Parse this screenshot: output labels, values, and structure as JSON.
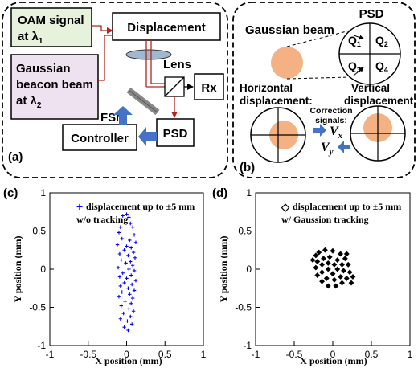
{
  "panel_a": {
    "label": "(a)",
    "oam_box": [
      "OAM signal",
      "at λ",
      "1"
    ],
    "gauss_box": [
      "Gaussian",
      "beacon beam",
      "at λ",
      "2"
    ],
    "displacement": "Displacement",
    "lens": "Lens",
    "fsm": "FSM",
    "rx": "Rx",
    "psd": "PSD",
    "controller": "Controller",
    "colors": {
      "oam_fill": "#e6f2dc",
      "gauss_fill": "#efe2f0",
      "beam": "#b3261e",
      "feedback_arrow": "#4472c4",
      "lens": "#9fb8cf"
    }
  },
  "panel_b": {
    "label": "(b)",
    "gaussian_beam": "Gaussian beam",
    "psd": "PSD",
    "quadrants": [
      [
        "Q",
        "1"
      ],
      [
        "Q",
        "2"
      ],
      [
        "Q",
        "3"
      ],
      [
        "Q",
        "4"
      ]
    ],
    "horizontal": [
      "Horizontal",
      "displacement:"
    ],
    "vertical": [
      "Vertical",
      "displacement:"
    ],
    "correction": [
      "Correction",
      "signals:"
    ],
    "vx": [
      "V",
      "x"
    ],
    "vy": [
      "V",
      "y"
    ],
    "colors": {
      "spot": "#f4b183",
      "arrow": "#4472c4"
    }
  },
  "chart_data": [
    {
      "panel": "(c)",
      "type": "scatter",
      "legend": [
        "+",
        "displacement up to ±5 mm",
        "w/o tracking"
      ],
      "xlabel": "X position (mm)",
      "ylabel": "Y position (mm)",
      "xlim": [
        -1,
        1
      ],
      "ylim": [
        -1,
        1
      ],
      "xticks": [
        "-1",
        "-0.5",
        "0",
        "0.5",
        "1"
      ],
      "yticks": [
        "1",
        "0.5",
        "0",
        "-0.5",
        "-1"
      ],
      "marker": "+",
      "color": "#0000ff",
      "series": [
        {
          "values": [
            [
              -0.05,
              0.7
            ],
            [
              0.0,
              0.72
            ],
            [
              0.03,
              0.68
            ],
            [
              0.05,
              0.6
            ],
            [
              -0.08,
              0.55
            ],
            [
              0.08,
              0.55
            ],
            [
              -0.1,
              0.48
            ],
            [
              0.1,
              0.45
            ],
            [
              -0.06,
              0.4
            ],
            [
              0.04,
              0.38
            ],
            [
              0.12,
              0.35
            ],
            [
              -0.12,
              0.32
            ],
            [
              0.0,
              0.3
            ],
            [
              0.06,
              0.28
            ],
            [
              -0.03,
              0.25
            ],
            [
              0.09,
              0.22
            ],
            [
              -0.09,
              0.2
            ],
            [
              0.02,
              0.18
            ],
            [
              0.11,
              0.15
            ],
            [
              -0.07,
              0.12
            ],
            [
              0.05,
              0.1
            ],
            [
              -0.01,
              0.08
            ],
            [
              0.08,
              0.05
            ],
            [
              -0.11,
              0.02
            ],
            [
              0.03,
              0.0
            ],
            [
              0.1,
              -0.02
            ],
            [
              -0.05,
              -0.05
            ],
            [
              0.06,
              -0.08
            ],
            [
              -0.09,
              -0.1
            ],
            [
              0.0,
              -0.12
            ],
            [
              0.12,
              -0.15
            ],
            [
              -0.03,
              -0.18
            ],
            [
              0.07,
              -0.2
            ],
            [
              -0.08,
              -0.22
            ],
            [
              0.02,
              -0.25
            ],
            [
              0.1,
              -0.28
            ],
            [
              -0.06,
              -0.3
            ],
            [
              0.04,
              -0.33
            ],
            [
              -0.1,
              -0.36
            ],
            [
              0.08,
              -0.38
            ],
            [
              -0.02,
              -0.42
            ],
            [
              0.06,
              -0.45
            ],
            [
              -0.07,
              -0.48
            ],
            [
              0.03,
              -0.52
            ],
            [
              0.09,
              -0.55
            ],
            [
              -0.04,
              -0.58
            ],
            [
              0.05,
              -0.62
            ],
            [
              -0.08,
              -0.65
            ],
            [
              0.01,
              -0.68
            ],
            [
              0.07,
              -0.72
            ],
            [
              -0.03,
              -0.76
            ],
            [
              0.02,
              -0.8
            ]
          ]
        }
      ]
    },
    {
      "panel": "(d)",
      "type": "scatter",
      "legend": [
        "◇",
        "displacement up to ±5 mm",
        "w/ Gaussion tracking"
      ],
      "xlabel": "X position (mm)",
      "ylabel": "Y position (mm)",
      "xlim": [
        -1,
        1
      ],
      "ylim": [
        -1,
        1
      ],
      "xticks": [
        "-1",
        "-0.5",
        "0",
        "0.5",
        "1"
      ],
      "yticks": [
        "1",
        "0.5",
        "0",
        "-0.5",
        "-1"
      ],
      "marker": "diamond",
      "color": "#000000",
      "series": [
        {
          "values": [
            [
              -0.22,
              0.18
            ],
            [
              -0.18,
              0.22
            ],
            [
              -0.1,
              0.25
            ],
            [
              0.0,
              0.24
            ],
            [
              0.1,
              0.2
            ],
            [
              0.16,
              0.14
            ],
            [
              0.2,
              0.06
            ],
            [
              0.22,
              -0.04
            ],
            [
              0.18,
              -0.12
            ],
            [
              0.12,
              -0.18
            ],
            [
              0.04,
              -0.22
            ],
            [
              -0.06,
              -0.22
            ],
            [
              -0.14,
              -0.16
            ],
            [
              -0.2,
              -0.08
            ],
            [
              -0.22,
              0.02
            ],
            [
              -0.2,
              0.1
            ],
            [
              -0.12,
              0.14
            ],
            [
              -0.04,
              0.16
            ],
            [
              0.06,
              0.12
            ],
            [
              0.12,
              0.06
            ],
            [
              0.14,
              -0.02
            ],
            [
              0.1,
              -0.1
            ],
            [
              0.02,
              -0.14
            ],
            [
              -0.08,
              -0.12
            ],
            [
              -0.14,
              -0.04
            ],
            [
              -0.14,
              0.06
            ],
            [
              -0.06,
              0.08
            ],
            [
              0.02,
              0.06
            ],
            [
              0.06,
              0.0
            ],
            [
              0.0,
              -0.06
            ],
            [
              -0.06,
              0.0
            ],
            [
              0.24,
              -0.18
            ],
            [
              0.26,
              -0.1
            ],
            [
              -0.26,
              0.12
            ],
            [
              0.18,
              0.2
            ]
          ]
        }
      ]
    }
  ]
}
